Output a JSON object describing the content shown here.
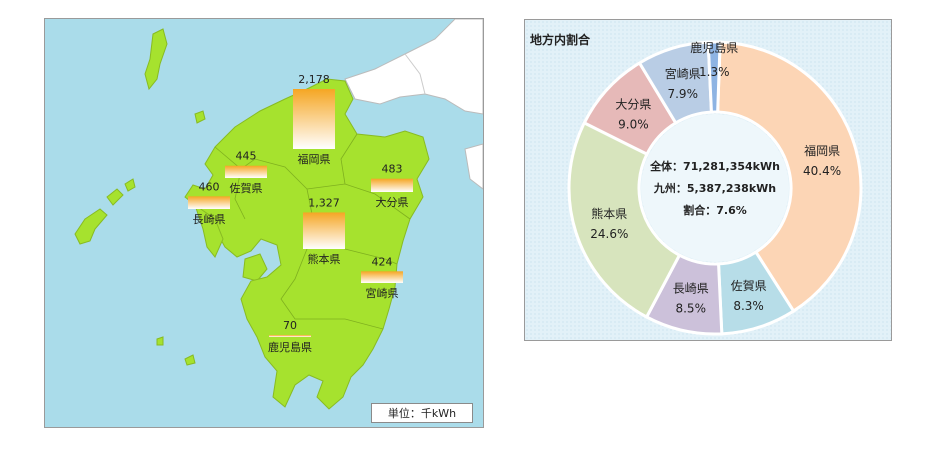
{
  "map": {
    "unit_label": "単位：千kWh"
  },
  "donut": {
    "title": "地方内割合",
    "center_lines": [
      "全体：71,281,354kWh",
      "九州：5,387,238kWh",
      "割合：7.6%"
    ]
  },
  "chart_data": [
    {
      "type": "bar",
      "categories": [
        "福岡県",
        "佐賀県",
        "長崎県",
        "熊本県",
        "大分県",
        "宮崎県",
        "鹿児島県"
      ],
      "values": [
        2178,
        445,
        460,
        1327,
        483,
        424,
        70
      ],
      "value_labels": [
        "2,178",
        "445",
        "460",
        "1,327",
        "483",
        "424",
        "70"
      ],
      "title": "",
      "ylabel": "単位：千kWh",
      "bar_gradient": [
        "#f5a623",
        "#ffffff"
      ]
    },
    {
      "type": "pie",
      "title": "地方内割合",
      "labels": [
        "福岡県",
        "佐賀県",
        "長崎県",
        "熊本県",
        "大分県",
        "宮崎県",
        "鹿児島県"
      ],
      "values": [
        40.4,
        8.3,
        8.5,
        24.6,
        9.0,
        7.9,
        1.3
      ],
      "value_labels": [
        "40.4%",
        "8.3%",
        "8.5%",
        "24.6%",
        "9.0%",
        "7.9%",
        "1.3%"
      ],
      "colors": [
        "#fcd5b5",
        "#b7dde8",
        "#ccc1da",
        "#d7e4bd",
        "#e6b9b8",
        "#b9cde5",
        "#8eb4e3"
      ],
      "donut": true
    }
  ]
}
